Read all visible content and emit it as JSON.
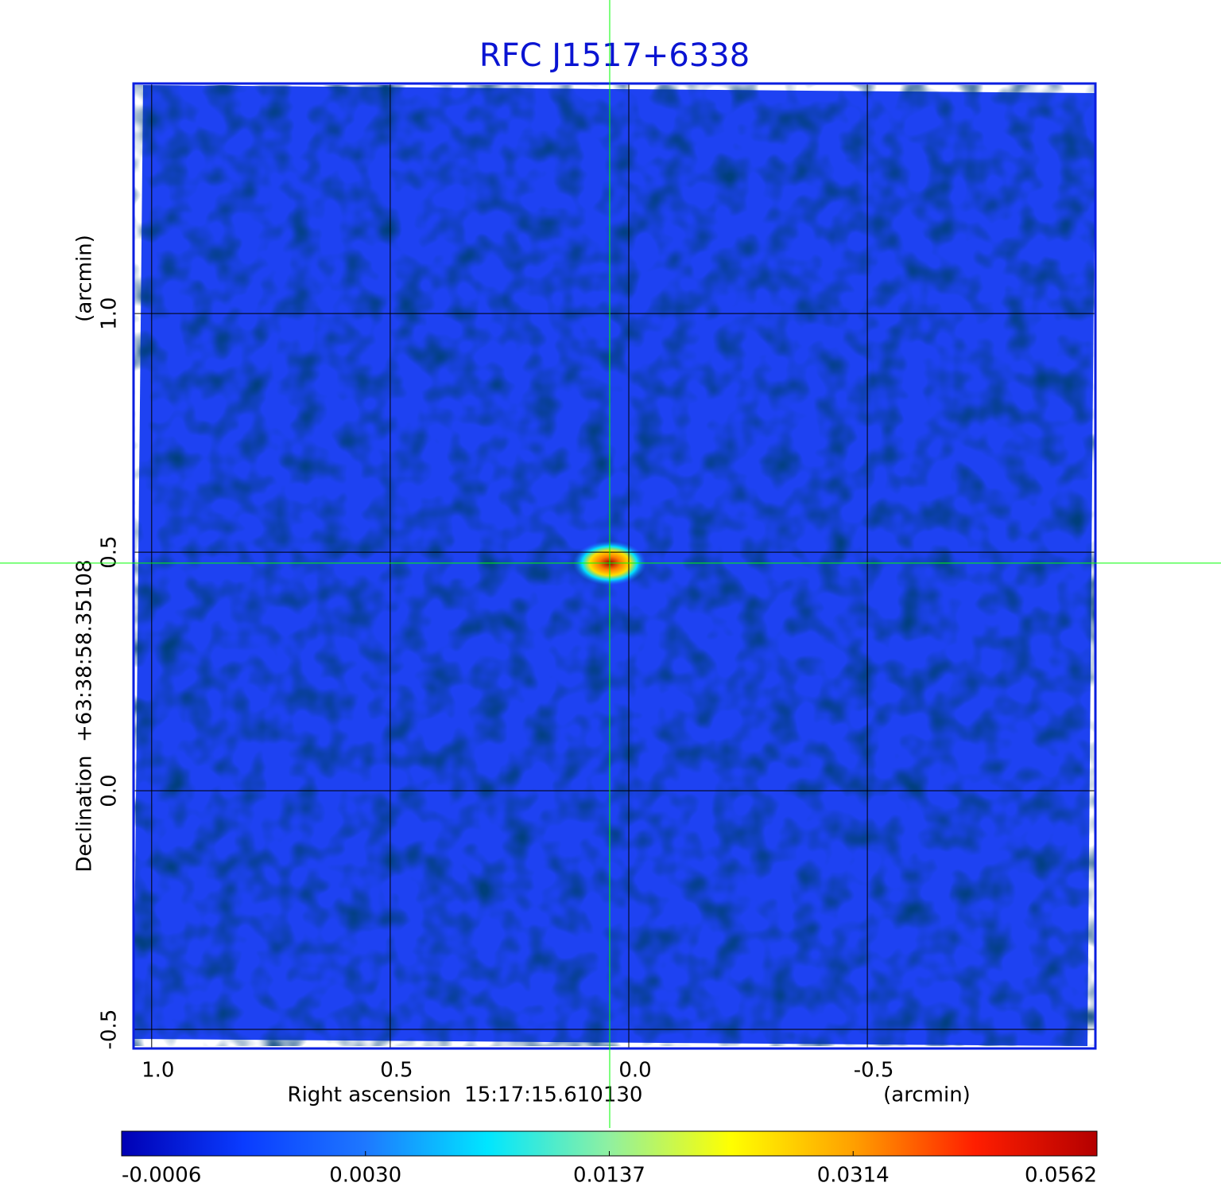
{
  "chart_data": {
    "type": "image",
    "title": "RFC J1517+6338",
    "x_label": "Right ascension  15:17:15.610130",
    "x_unit": "(arcmin)",
    "y_label": "Declination  +63:38:58.35108",
    "y_unit": "(arcmin)",
    "xlim": [
      1.038,
      -0.978
    ],
    "ylim": [
      -0.54,
      1.482
    ],
    "xticks": [
      {
        "value": 1,
        "label": "1.0"
      },
      0.5,
      {
        "value": 0,
        "label": "0.0"
      },
      -0.5
    ],
    "yticks": [
      -0.5,
      {
        "value": 0,
        "label": "0.0"
      },
      0.5,
      {
        "value": 1,
        "label": "1.0"
      }
    ],
    "grid": true,
    "crosshair": {
      "x": 0.04,
      "y": 0.477,
      "color": "#00ff00"
    },
    "image_color": "#1e42f2",
    "frame_color": "#0a1ee0",
    "title_color": "#0a14d2",
    "colorbar": {
      "ticks": [
        -0.0006,
        {
          "value": 0.003,
          "label": "0.0030"
        },
        0.0137,
        0.0314,
        0.0562
      ],
      "colors": [
        "#0000b4",
        "#0a3cff",
        "#1e78ff",
        "#00e6ff",
        "#90f0a0",
        "#ffff00",
        "#ffa000",
        "#ff1e00",
        "#b40000"
      ]
    }
  }
}
